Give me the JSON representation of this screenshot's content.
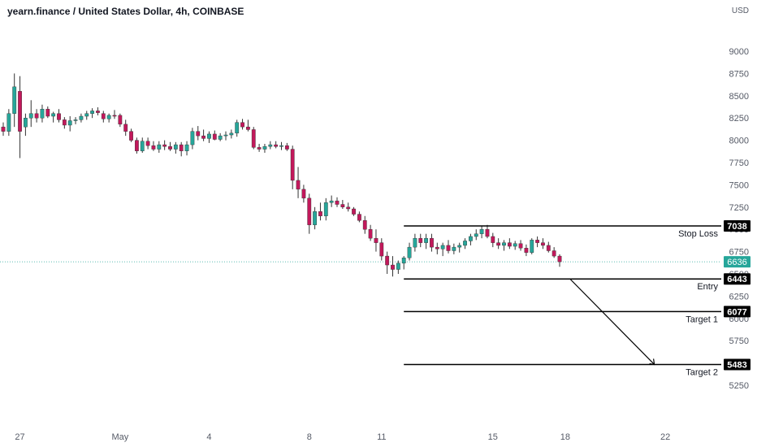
{
  "header": {
    "title": "yearn.finance / United States Dollar, 4h, COINBASE"
  },
  "colors": {
    "up": "#26a69a",
    "down": "#c2185b",
    "line": "#000000",
    "last_price_bg": "#26a69a",
    "label_bg": "#000000",
    "axis_text": "#555a66"
  },
  "chart_data": {
    "type": "candlestick",
    "title": "yearn.finance / United States Dollar, 4h, COINBASE",
    "currency_label": "USD",
    "ylim": [
      5150,
      9150
    ],
    "y_ticks": [
      5250,
      5500,
      5750,
      6000,
      6250,
      6500,
      6750,
      7000,
      7250,
      7500,
      7750,
      8000,
      8250,
      8500,
      8750,
      9000
    ],
    "x_ticks": [
      {
        "label": "27",
        "bar": 3
      },
      {
        "label": "May",
        "bar": 21
      },
      {
        "label": "4",
        "bar": 37
      },
      {
        "label": "8",
        "bar": 55
      },
      {
        "label": "11",
        "bar": 68
      },
      {
        "label": "15",
        "bar": 88
      },
      {
        "label": "18",
        "bar": 101
      },
      {
        "label": "22",
        "bar": 119
      }
    ],
    "last_price": 6636,
    "candles": [
      [
        8150,
        8200,
        8050,
        8100
      ],
      [
        8100,
        8350,
        8050,
        8300
      ],
      [
        8300,
        8750,
        8150,
        8600
      ],
      [
        8550,
        8720,
        7800,
        8100
      ],
      [
        8150,
        8300,
        8050,
        8250
      ],
      [
        8250,
        8450,
        8150,
        8300
      ],
      [
        8300,
        8350,
        8200,
        8250
      ],
      [
        8250,
        8400,
        8200,
        8350
      ],
      [
        8350,
        8380,
        8250,
        8270
      ],
      [
        8270,
        8320,
        8200,
        8300
      ],
      [
        8300,
        8350,
        8200,
        8230
      ],
      [
        8230,
        8260,
        8130,
        8170
      ],
      [
        8170,
        8270,
        8100,
        8220
      ],
      [
        8220,
        8260,
        8180,
        8230
      ],
      [
        8230,
        8300,
        8200,
        8270
      ],
      [
        8270,
        8330,
        8230,
        8300
      ],
      [
        8300,
        8360,
        8250,
        8330
      ],
      [
        8330,
        8370,
        8280,
        8310
      ],
      [
        8300,
        8330,
        8200,
        8240
      ],
      [
        8240,
        8300,
        8200,
        8280
      ],
      [
        8280,
        8340,
        8240,
        8270
      ],
      [
        8280,
        8300,
        8150,
        8180
      ],
      [
        8180,
        8230,
        8050,
        8100
      ],
      [
        8100,
        8130,
        7980,
        8000
      ],
      [
        8000,
        8030,
        7850,
        7880
      ],
      [
        7880,
        8030,
        7860,
        7990
      ],
      [
        7990,
        8030,
        7900,
        7940
      ],
      [
        7940,
        7990,
        7880,
        7900
      ],
      [
        7900,
        7990,
        7860,
        7950
      ],
      [
        7950,
        8000,
        7890,
        7930
      ],
      [
        7930,
        7980,
        7880,
        7900
      ],
      [
        7900,
        7980,
        7850,
        7950
      ],
      [
        7950,
        7980,
        7820,
        7880
      ],
      [
        7880,
        7990,
        7830,
        7950
      ],
      [
        7950,
        8140,
        7900,
        8100
      ],
      [
        8100,
        8160,
        8000,
        8050
      ],
      [
        8050,
        8120,
        7990,
        8020
      ],
      [
        8020,
        8100,
        7970,
        8070
      ],
      [
        8070,
        8110,
        8000,
        8010
      ],
      [
        8010,
        8080,
        7990,
        8050
      ],
      [
        8050,
        8100,
        8000,
        8060
      ],
      [
        8060,
        8120,
        8020,
        8080
      ],
      [
        8080,
        8230,
        8040,
        8200
      ],
      [
        8200,
        8240,
        8120,
        8150
      ],
      [
        8150,
        8230,
        8100,
        8120
      ],
      [
        8120,
        8150,
        7900,
        7920
      ],
      [
        7920,
        7960,
        7870,
        7900
      ],
      [
        7900,
        7960,
        7860,
        7930
      ],
      [
        7930,
        7990,
        7900,
        7950
      ],
      [
        7950,
        7990,
        7910,
        7930
      ],
      [
        7930,
        7980,
        7890,
        7940
      ],
      [
        7940,
        7970,
        7880,
        7900
      ],
      [
        7900,
        7940,
        7450,
        7550
      ],
      [
        7550,
        7700,
        7350,
        7450
      ],
      [
        7450,
        7500,
        7300,
        7350
      ],
      [
        7350,
        7400,
        6950,
        7050
      ],
      [
        7050,
        7250,
        7000,
        7200
      ],
      [
        7200,
        7300,
        7100,
        7150
      ],
      [
        7150,
        7350,
        7100,
        7300
      ],
      [
        7300,
        7380,
        7250,
        7320
      ],
      [
        7320,
        7360,
        7250,
        7280
      ],
      [
        7280,
        7330,
        7230,
        7250
      ],
      [
        7250,
        7300,
        7200,
        7230
      ],
      [
        7230,
        7250,
        7150,
        7170
      ],
      [
        7170,
        7200,
        7080,
        7100
      ],
      [
        7100,
        7150,
        6950,
        7000
      ],
      [
        7000,
        7050,
        6870,
        6900
      ],
      [
        6900,
        7000,
        6750,
        6850
      ],
      [
        6850,
        6900,
        6650,
        6700
      ],
      [
        6700,
        6750,
        6500,
        6600
      ],
      [
        6600,
        6700,
        6470,
        6550
      ],
      [
        6550,
        6650,
        6500,
        6620
      ],
      [
        6620,
        6700,
        6550,
        6680
      ],
      [
        6680,
        6850,
        6650,
        6800
      ],
      [
        6800,
        6950,
        6750,
        6900
      ],
      [
        6900,
        6950,
        6800,
        6850
      ],
      [
        6850,
        6950,
        6780,
        6900
      ],
      [
        6900,
        6950,
        6750,
        6800
      ],
      [
        6800,
        6850,
        6720,
        6780
      ],
      [
        6780,
        6850,
        6700,
        6820
      ],
      [
        6820,
        6880,
        6730,
        6760
      ],
      [
        6760,
        6840,
        6720,
        6800
      ],
      [
        6800,
        6850,
        6740,
        6820
      ],
      [
        6820,
        6900,
        6780,
        6870
      ],
      [
        6870,
        6950,
        6820,
        6920
      ],
      [
        6920,
        7000,
        6880,
        6950
      ],
      [
        6950,
        7040,
        6900,
        7000
      ],
      [
        7000,
        7050,
        6900,
        6920
      ],
      [
        6920,
        6960,
        6800,
        6850
      ],
      [
        6850,
        6900,
        6780,
        6820
      ],
      [
        6820,
        6880,
        6760,
        6850
      ],
      [
        6850,
        6900,
        6780,
        6810
      ],
      [
        6810,
        6870,
        6770,
        6840
      ],
      [
        6840,
        6880,
        6760,
        6790
      ],
      [
        6790,
        6830,
        6700,
        6740
      ],
      [
        6740,
        6900,
        6720,
        6880
      ],
      [
        6880,
        6920,
        6800,
        6850
      ],
      [
        6850,
        6900,
        6780,
        6820
      ],
      [
        6820,
        6860,
        6740,
        6760
      ],
      [
        6760,
        6800,
        6680,
        6700
      ],
      [
        6700,
        6720,
        6580,
        6636
      ]
    ],
    "levels": [
      {
        "label": "Stop Loss",
        "value": 7038
      },
      {
        "label": "Entry",
        "value": 6443
      },
      {
        "label": "Target 1",
        "value": 6077
      },
      {
        "label": "Target 2",
        "value": 5483
      }
    ],
    "arrow": {
      "from_bar": 101,
      "from_value": 6443,
      "to_bar": 116,
      "to_value": 5483
    }
  }
}
